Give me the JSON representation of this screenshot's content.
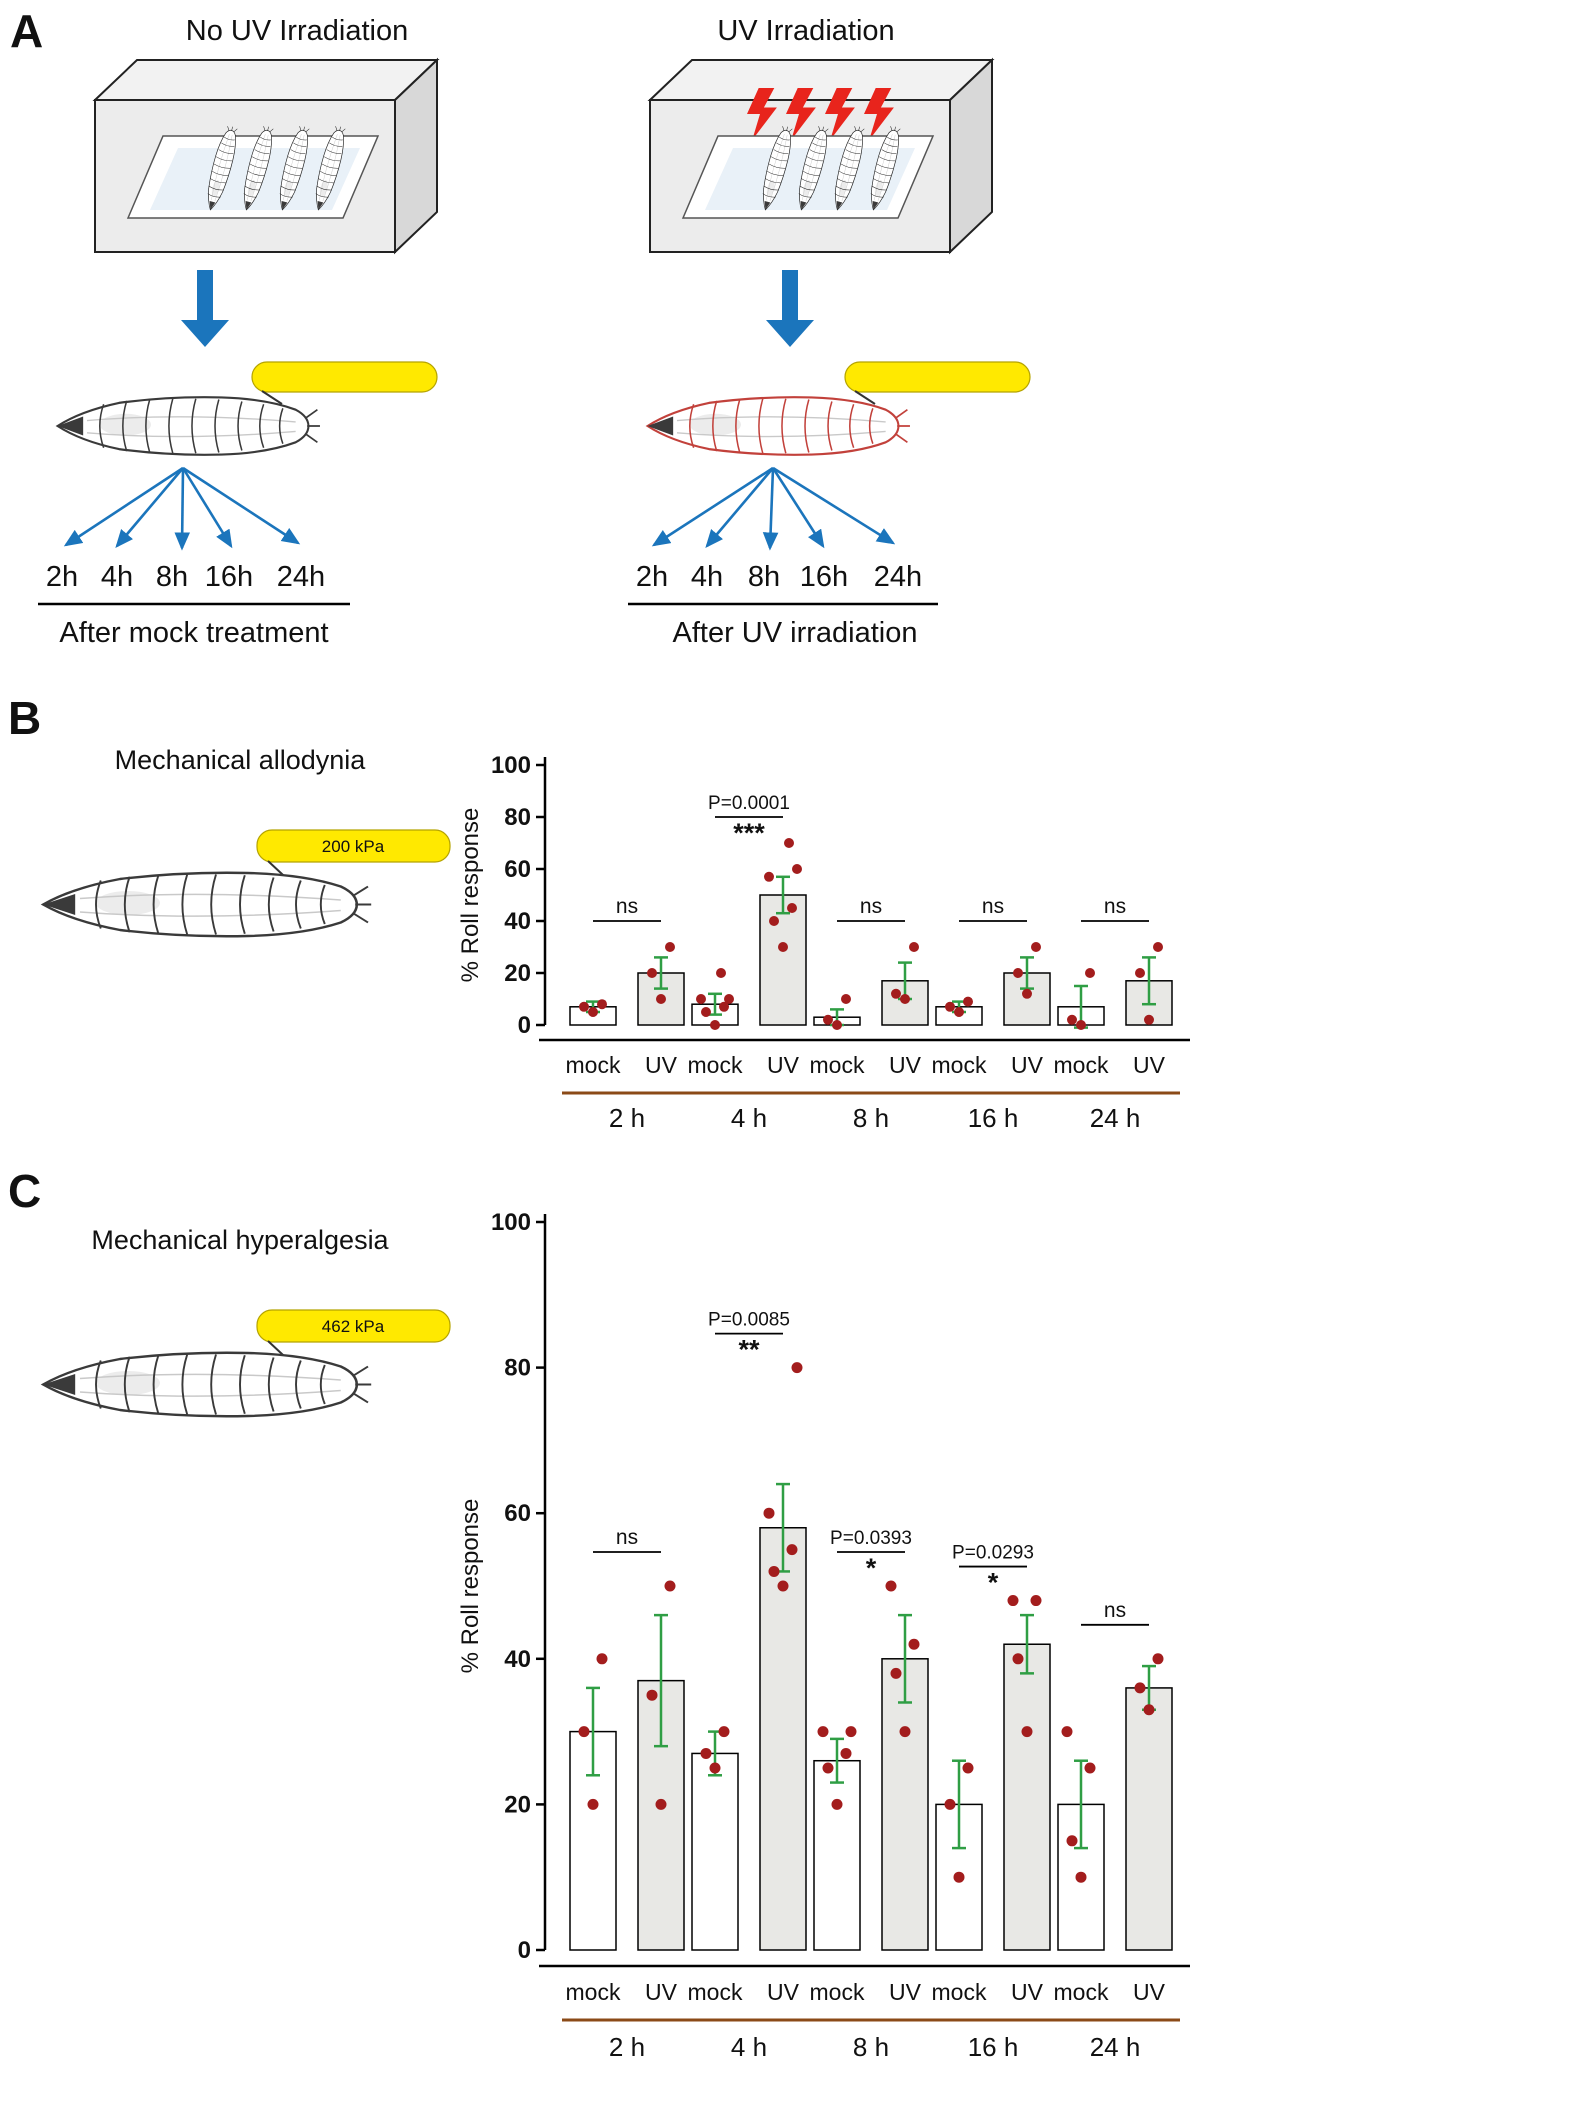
{
  "colors": {
    "arrow_blue": "#1B75BC",
    "probe_yellow": "#FFE900",
    "probe_outline": "#B5A300",
    "dot_red": "#A31D1D",
    "error_green": "#2F9E44",
    "bar_mock_fill": "#FFFFFF",
    "bar_uv_fill": "#E8E8E5",
    "group_line_brown": "#8B4A17",
    "bolt_red": "#E8241C",
    "mock_caption_green": "#00A550",
    "uv_caption_red": "#D62718"
  },
  "panel_a": {
    "label": "A",
    "left": {
      "title": "No UV Irradiation",
      "timepoints": [
        "2h",
        "4h",
        "8h",
        "16h",
        "24h"
      ],
      "caption": "After mock treatment",
      "caption_color": "#00A550"
    },
    "right": {
      "title": "UV Irradiation",
      "timepoints": [
        "2h",
        "4h",
        "8h",
        "16h",
        "24h"
      ],
      "caption": "After UV irradiation",
      "caption_color": "#D62718"
    }
  },
  "panel_b": {
    "label": "B",
    "title": "Mechanical allodynia",
    "probe_label": "200 kPa"
  },
  "panel_c": {
    "label": "C",
    "title": "Mechanical hyperalgesia",
    "probe_label": "462 kPa"
  },
  "chart_data": [
    {
      "id": "allodynia",
      "type": "bar",
      "title": "Mechanical allodynia",
      "xlabel": "",
      "ylabel": "% Roll response",
      "ylim": [
        0,
        100
      ],
      "yticks": [
        0,
        20,
        40,
        60,
        80,
        100
      ],
      "groups": [
        "2 h",
        "4 h",
        "8 h",
        "16 h",
        "24 h"
      ],
      "conditions": [
        "mock",
        "UV"
      ],
      "series": [
        {
          "name": "mock",
          "values": [
            7,
            8,
            3,
            7,
            7
          ],
          "errors": [
            2,
            4,
            3,
            2,
            8
          ],
          "points": [
            [
              5,
              7,
              8
            ],
            [
              0,
              5,
              7,
              10,
              10,
              20
            ],
            [
              0,
              2,
              10
            ],
            [
              5,
              7,
              9
            ],
            [
              0,
              2,
              20
            ]
          ]
        },
        {
          "name": "UV",
          "values": [
            20,
            50,
            17,
            20,
            17
          ],
          "errors": [
            6,
            7,
            7,
            6,
            9
          ],
          "points": [
            [
              10,
              20,
              30
            ],
            [
              30,
              40,
              45,
              57,
              60,
              70
            ],
            [
              10,
              12,
              30
            ],
            [
              12,
              20,
              30
            ],
            [
              2,
              20,
              30
            ]
          ]
        }
      ],
      "significance": [
        {
          "label": "ns"
        },
        {
          "p": "P=0.0001",
          "stars": "***"
        },
        {
          "label": "ns"
        },
        {
          "label": "ns"
        },
        {
          "label": "ns"
        }
      ]
    },
    {
      "id": "hyperalgesia",
      "type": "bar",
      "title": "Mechanical hyperalgesia",
      "xlabel": "",
      "ylabel": "% Roll response",
      "ylim": [
        0,
        100
      ],
      "yticks": [
        0,
        20,
        40,
        60,
        80,
        100
      ],
      "groups": [
        "2 h",
        "4 h",
        "8 h",
        "16 h",
        "24 h"
      ],
      "conditions": [
        "mock",
        "UV"
      ],
      "series": [
        {
          "name": "mock",
          "values": [
            30,
            27,
            26,
            20,
            20
          ],
          "errors": [
            6,
            3,
            3,
            6,
            6
          ],
          "points": [
            [
              20,
              30,
              40
            ],
            [
              25,
              27,
              30
            ],
            [
              20,
              25,
              27,
              30,
              30
            ],
            [
              10,
              20,
              25
            ],
            [
              10,
              15,
              25,
              30
            ]
          ]
        },
        {
          "name": "UV",
          "values": [
            37,
            58,
            40,
            42,
            36
          ],
          "errors": [
            9,
            6,
            6,
            4,
            3
          ],
          "points": [
            [
              20,
              35,
              50
            ],
            [
              50,
              52,
              55,
              60,
              80
            ],
            [
              30,
              38,
              42,
              50
            ],
            [
              30,
              40,
              48,
              48
            ],
            [
              33,
              36,
              40
            ]
          ]
        }
      ],
      "significance": [
        {
          "label": "ns"
        },
        {
          "p": "P=0.0085",
          "stars": "**"
        },
        {
          "p": "P=0.0393",
          "stars": "*"
        },
        {
          "p": "P=0.0293",
          "stars": "*"
        },
        {
          "label": "ns"
        }
      ]
    }
  ]
}
